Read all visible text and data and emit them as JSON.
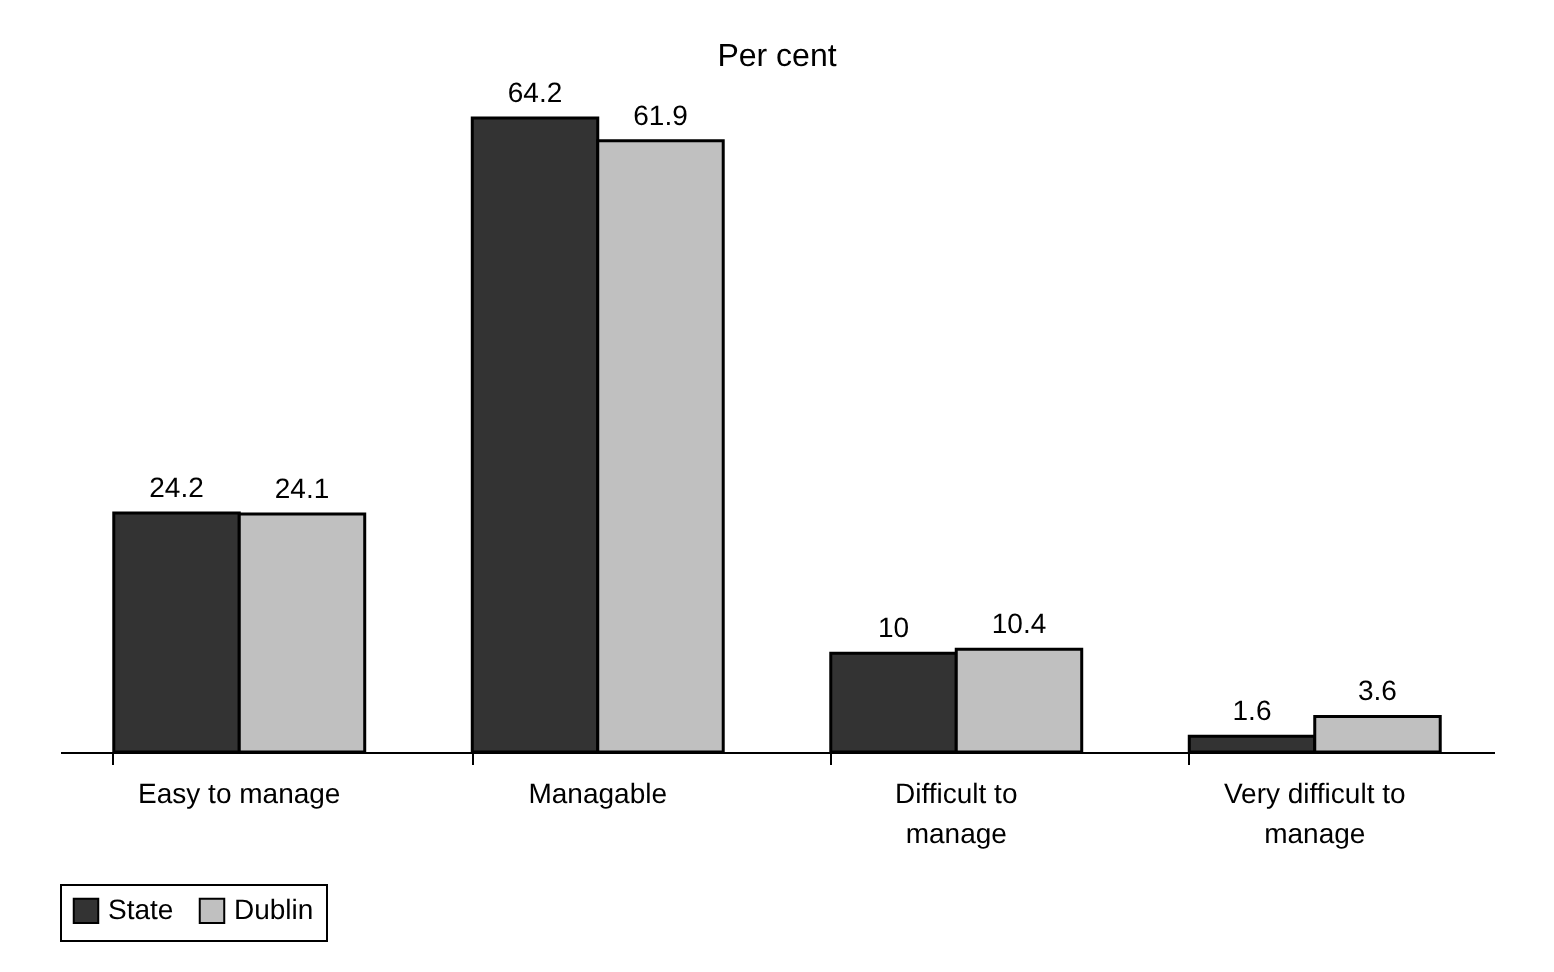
{
  "chart_data": {
    "type": "bar",
    "title": "Per cent",
    "categories": [
      "Easy to manage",
      "Managable",
      "Difficult to manage",
      "Very difficult to manage"
    ],
    "series": [
      {
        "name": "State",
        "color": "#333333",
        "values": [
          24.2,
          64.2,
          10,
          1.6
        ]
      },
      {
        "name": "Dublin",
        "color": "#c0c0c0",
        "values": [
          24.1,
          61.9,
          10.4,
          3.6
        ]
      }
    ],
    "data_labels": true,
    "legend": "bottom",
    "grid": false
  }
}
